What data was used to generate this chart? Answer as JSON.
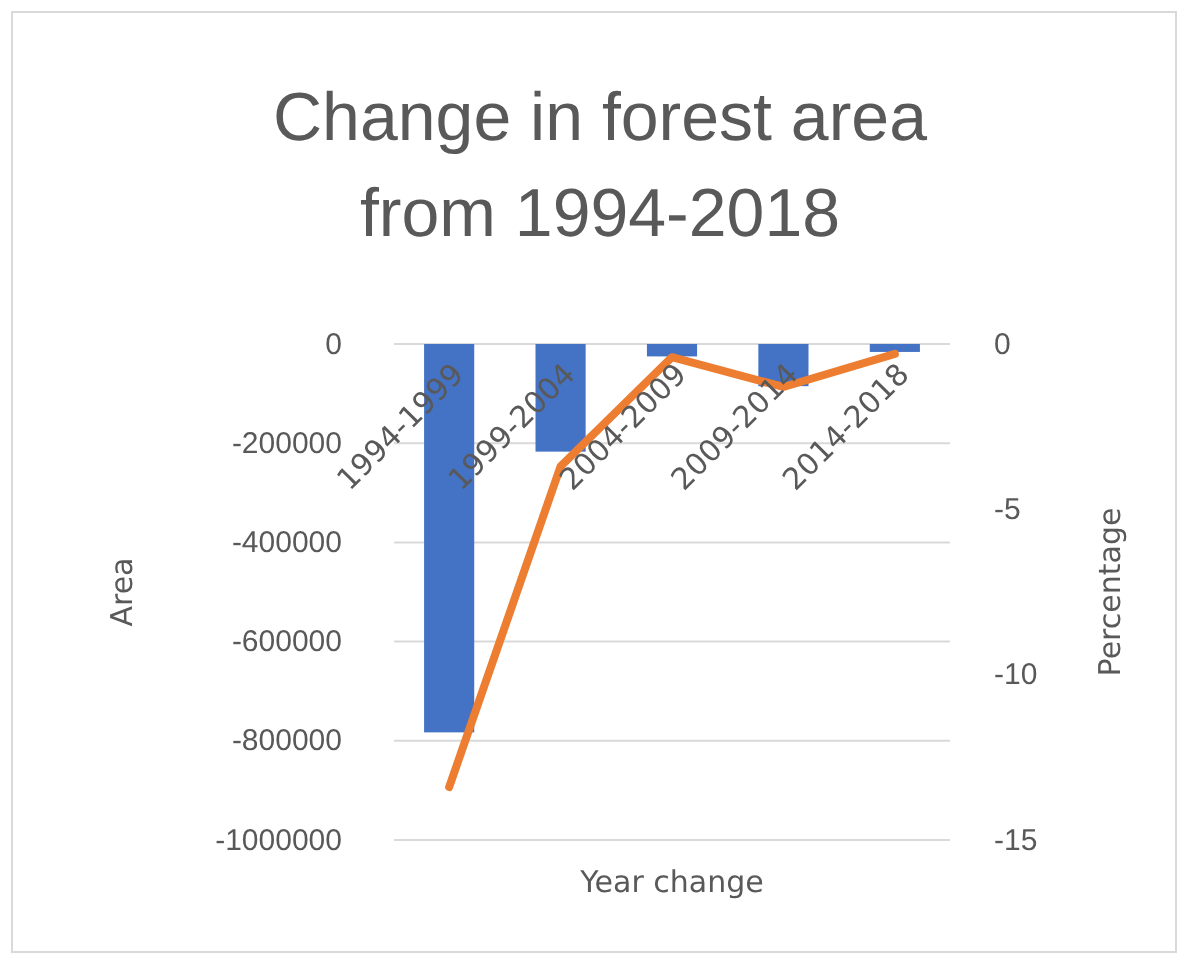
{
  "chart_data": {
    "type": "bar",
    "title": "Change in forest area from 1994-2018",
    "xlabel": "Year change",
    "ylabel": "Area",
    "y2label": "Percentage",
    "categories": [
      "1994-1999",
      "1999-2004",
      "2004-2009",
      "2009-2014",
      "2014-2018"
    ],
    "series": [
      {
        "color": "#4472c4",
        "values": [
          -783000,
          -217000,
          -25000,
          -85000,
          -16000
        ]
      },
      {
        "type": "line",
        "axis": "y2",
        "color": "#ed7d31",
        "values": [
          -13.4,
          -3.7,
          -0.4,
          -1.3,
          -0.3
        ]
      }
    ],
    "ylim": [
      -1000000,
      0
    ],
    "yticks": [
      -1000000,
      -800000,
      -600000,
      -400000,
      -200000,
      0
    ],
    "y2lim": [
      -15,
      0
    ],
    "y2ticks": [
      -15,
      -10,
      -5,
      0
    ],
    "grid": "y"
  }
}
